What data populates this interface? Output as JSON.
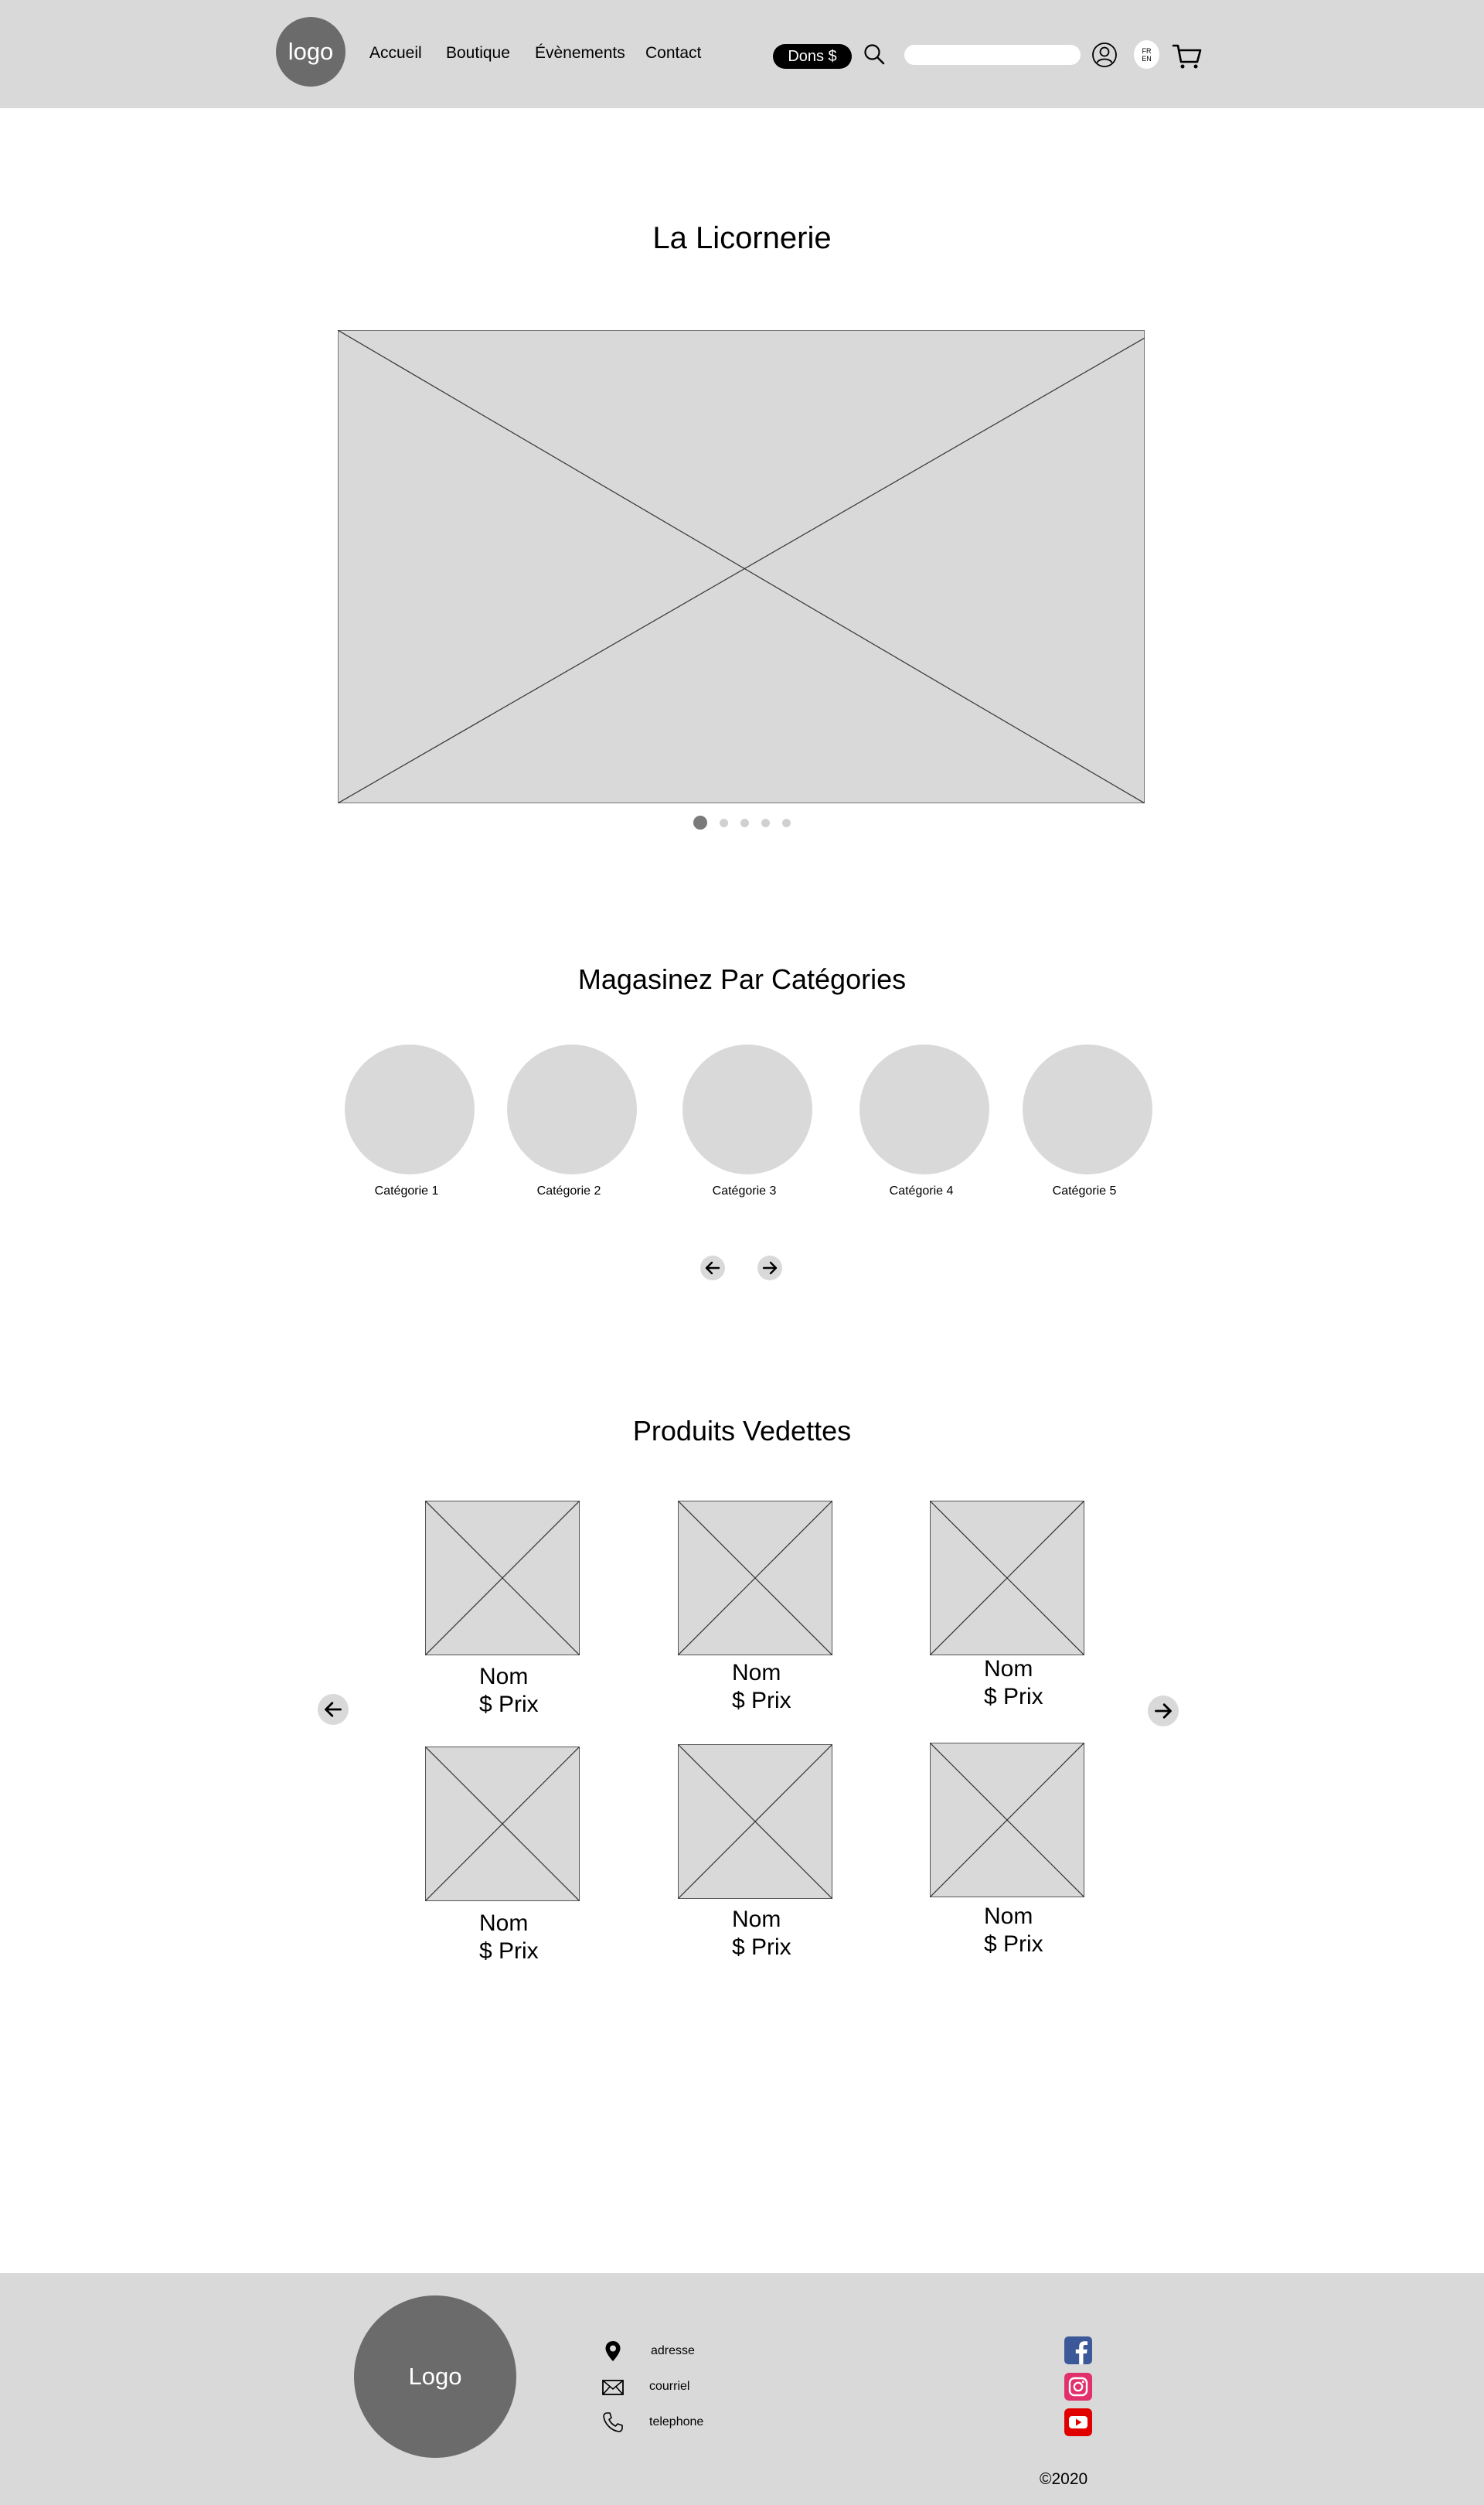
{
  "header": {
    "logo_text": "logo",
    "nav": [
      "Accueil",
      "Boutique",
      "Évènements",
      "Contact"
    ],
    "donate_label": "Dons $",
    "search_placeholder": "",
    "lang_primary": "FR",
    "lang_secondary": "EN"
  },
  "hero": {
    "title": "La Licornerie",
    "slide_count": 5,
    "active_slide": 1
  },
  "categories": {
    "title": "Magasinez Par Catégories",
    "items": [
      "Catégorie 1",
      "Catégorie 2",
      "Catégorie 3",
      "Catégorie 4",
      "Catégorie 5"
    ]
  },
  "products": {
    "title": "Produits Vedettes",
    "items": [
      {
        "name": "Nom",
        "price": "$ Prix"
      },
      {
        "name": "Nom",
        "price": "$ Prix"
      },
      {
        "name": "Nom",
        "price": "$ Prix"
      },
      {
        "name": "Nom",
        "price": "$ Prix"
      },
      {
        "name": "Nom",
        "price": "$ Prix"
      },
      {
        "name": "Nom",
        "price": "$ Prix"
      }
    ]
  },
  "footer": {
    "logo_text": "Logo",
    "address": "adresse",
    "email": "courriel",
    "phone": "telephone",
    "social": [
      "facebook-icon",
      "instagram-icon",
      "youtube-icon"
    ],
    "copyright": "©2020"
  },
  "colors": {
    "header_bg": "#d9d9d9",
    "placeholder": "#d9d9d9",
    "logo": "#6b6b6b",
    "facebook": "#3b5998",
    "youtube": "#e00000"
  }
}
